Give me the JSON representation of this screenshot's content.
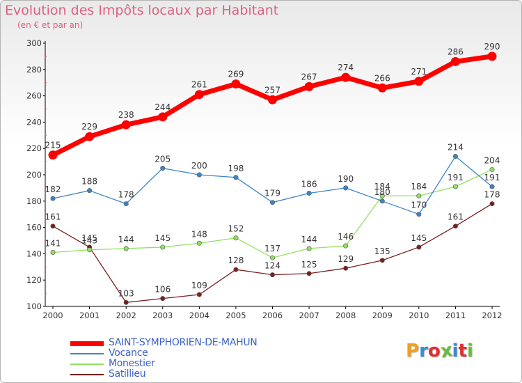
{
  "title": "Evolution des Impôts locaux par Habitant",
  "subtitle": "(en € et par an)",
  "brand": "Proxiti",
  "brand_colors": [
    "#f0a020",
    "#3a8ad0",
    "#e03030",
    "#6abd3a",
    "#3a8ad0",
    "#e03030",
    "#6abd3a"
  ],
  "chart_data": {
    "type": "line",
    "x": [
      "2000",
      "2001",
      "2002",
      "2003",
      "2004",
      "2005",
      "2006",
      "2007",
      "2008",
      "2009",
      "2010",
      "2011",
      "2012"
    ],
    "ylim": [
      100,
      300
    ],
    "yticks": [
      100,
      120,
      140,
      160,
      180,
      200,
      220,
      240,
      260,
      280,
      300
    ],
    "grid": false,
    "legend_position": "bottom-left",
    "series": [
      {
        "name": "SAINT-SYMPHORIEN-DE-MAHUN",
        "color": "#ff0000",
        "width": 7,
        "marker": 6.5,
        "values": [
          215,
          229,
          238,
          244,
          261,
          269,
          257,
          267,
          274,
          266,
          271,
          286,
          290
        ]
      },
      {
        "name": "Vocance",
        "color": "#3d85c6",
        "width": 1.3,
        "marker": 3.2,
        "values": [
          182,
          188,
          178,
          205,
          200,
          198,
          179,
          186,
          190,
          180,
          170,
          214,
          191
        ]
      },
      {
        "name": "Monestier",
        "color": "#90e060",
        "width": 1.3,
        "marker": 3.2,
        "values": [
          141,
          143,
          144,
          145,
          148,
          152,
          137,
          144,
          146,
          184,
          184,
          191,
          204
        ]
      },
      {
        "name": "Satillieu",
        "color": "#7a1f1f",
        "width": 1.3,
        "marker": 3.2,
        "values": [
          161,
          145,
          103,
          106,
          109,
          128,
          124,
          125,
          129,
          135,
          145,
          161,
          178
        ]
      }
    ]
  }
}
